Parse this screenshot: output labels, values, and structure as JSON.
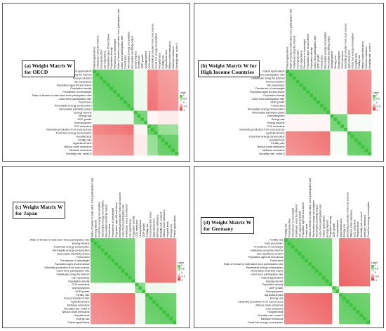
{
  "legend": {
    "title": "Label",
    "ticks": [
      "1",
      "0.5",
      "0",
      "-0.5",
      "-1"
    ],
    "high_color": "#3cc23c",
    "mid_color": "#ffffff",
    "low_color": "#e82a2a"
  },
  "chart_data": [
    {
      "type": "heatmap",
      "panel": "a",
      "title_lines": [
        "(a) Weight Matrix W",
        "for OECD"
      ],
      "variables": [
        "Patent applications",
        "Individuals using the Internet",
        "Food production",
        "Life expectancy",
        "Population ages 65 and above",
        "Population density",
        "Prevalence of overweight",
        "Ratio of female to male labor force participation rate",
        "Labor force participation rate",
        "Forest area",
        "Renewable energy consumption",
        "Renewable electricity output",
        "Energy imports",
        "Energy use",
        "GDP growth",
        "Unemployment",
        "CO2 emissions",
        "Electricity production from coal sources",
        "Fossil fuel energy consumption",
        "Hospital beds",
        "Fertility rate",
        "Agricultural land",
        "Nitrous oxide emissions",
        "Methane emissions",
        "Mortality rate, under-5"
      ],
      "groups": [
        12,
        4,
        3,
        6
      ],
      "group_relations": [
        [
          0.8,
          0.1,
          -0.7,
          -0.6
        ],
        [
          0.1,
          0.7,
          -0.05,
          -0.1
        ],
        [
          -0.7,
          -0.05,
          0.8,
          0.55
        ],
        [
          -0.6,
          -0.1,
          0.55,
          0.8
        ]
      ]
    },
    {
      "type": "heatmap",
      "panel": "b",
      "title_lines": [
        "(b) Weight Matrix W for",
        "High Income Countries"
      ],
      "variables": [
        "Patent applications",
        "Ratio of female to male labor force participation rate",
        "Individuals using the Internet",
        "Food production",
        "Life expectancy",
        "Prevalence of overweight",
        "Population ages 65 and above",
        "Population density",
        "Labor force participation rate",
        "GDP growth",
        "Forest area",
        "Renewable energy consumption",
        "Renewable electricity output",
        "Unemployment",
        "Energy use",
        "Energy imports",
        "CO2 emissions",
        "Electricity production from coal sources",
        "Agricultural land",
        "Fossil fuel energy consumption",
        "Hospital beds",
        "Fertility rate",
        "Nitrous oxide emissions",
        "Methane emissions",
        "Mortality rate, under-5"
      ],
      "groups": [
        13,
        5,
        7
      ],
      "group_relations": [
        [
          0.8,
          -0.05,
          -0.7
        ],
        [
          -0.05,
          0.7,
          0.05
        ],
        [
          -0.7,
          0.05,
          0.8
        ]
      ]
    },
    {
      "type": "heatmap",
      "panel": "c",
      "title_lines": [
        "(c) Weight Matrix W",
        "for Japan"
      ],
      "variables": [
        "Ratio of female to male labor force participation rate",
        "Energy imports",
        "Fossil fuel energy consumption",
        "Renewable energy consumption",
        "Renewable electricity output",
        "Forest area",
        "Prevalence of overweight",
        "Population ages 65 and above",
        "Electricity production from coal sources",
        "Labor force participation rate",
        "Individuals using the Internet",
        "Life expectancy",
        "Population density",
        "CO2 emissions",
        "Unemployment",
        "GDP growth",
        "Fertility rate",
        "Food production index",
        "Agricultural land",
        "Methane emissions",
        "Mortality rate, under-5",
        "Nitrous oxide emissions",
        "Hospital beds",
        "Energy use",
        "Patent applications"
      ],
      "groups": [
        13,
        3,
        9
      ],
      "group_relations": [
        [
          0.8,
          0.05,
          -0.7
        ],
        [
          0.05,
          0.6,
          0.1
        ],
        [
          -0.7,
          0.1,
          0.8
        ]
      ]
    },
    {
      "type": "heatmap",
      "panel": "d",
      "title_lines": [
        "(d) Weight Matrix W",
        "for Germany"
      ],
      "variables": [
        "Fertility rate",
        "Food production",
        "Prevalence of overweight",
        "Individuals using the Internet",
        "Life expectancy at birth",
        "Population ages 65 and above",
        "Forest area",
        "Ratio of female to male labor force participation rate",
        "Renewable energy consumption",
        "Renewable electricity output",
        "Labor force participation rate",
        "Patent applications",
        "Energy imports",
        "Population density",
        "GDP growth",
        "Unemployment",
        "Agricultural land",
        "Energy use",
        "Electricity production from coal sources",
        "Nitrous oxide emissions",
        "CO2 emissions",
        "Hospital beds",
        "Mortality rate, under-5",
        "Methane emissions",
        "Fossil fuel energy consumption"
      ],
      "groups": [
        14,
        2,
        9
      ],
      "group_relations": [
        [
          0.8,
          0.05,
          -0.75
        ],
        [
          0.05,
          0.6,
          0.05
        ],
        [
          -0.75,
          0.05,
          0.8
        ]
      ]
    }
  ]
}
